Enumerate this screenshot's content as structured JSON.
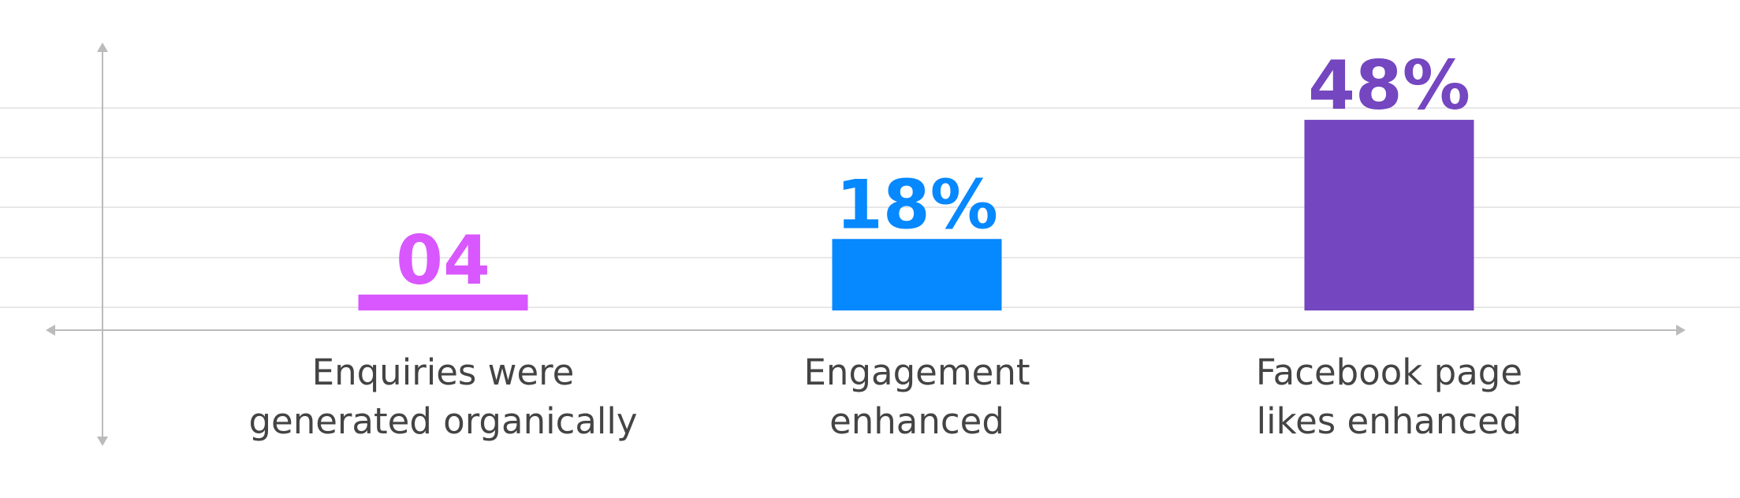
{
  "chart_data": {
    "type": "bar",
    "categories": [
      "Enquiries were\ngenerated organically",
      "Engagement\nenhanced",
      "Facebook page\nlikes enhanced"
    ],
    "values": [
      4,
      18,
      48
    ],
    "value_labels": [
      "04",
      "18%",
      "48%"
    ],
    "colors": [
      "#d957ff",
      "#0688ff",
      "#7446c0"
    ],
    "grid": true
  }
}
